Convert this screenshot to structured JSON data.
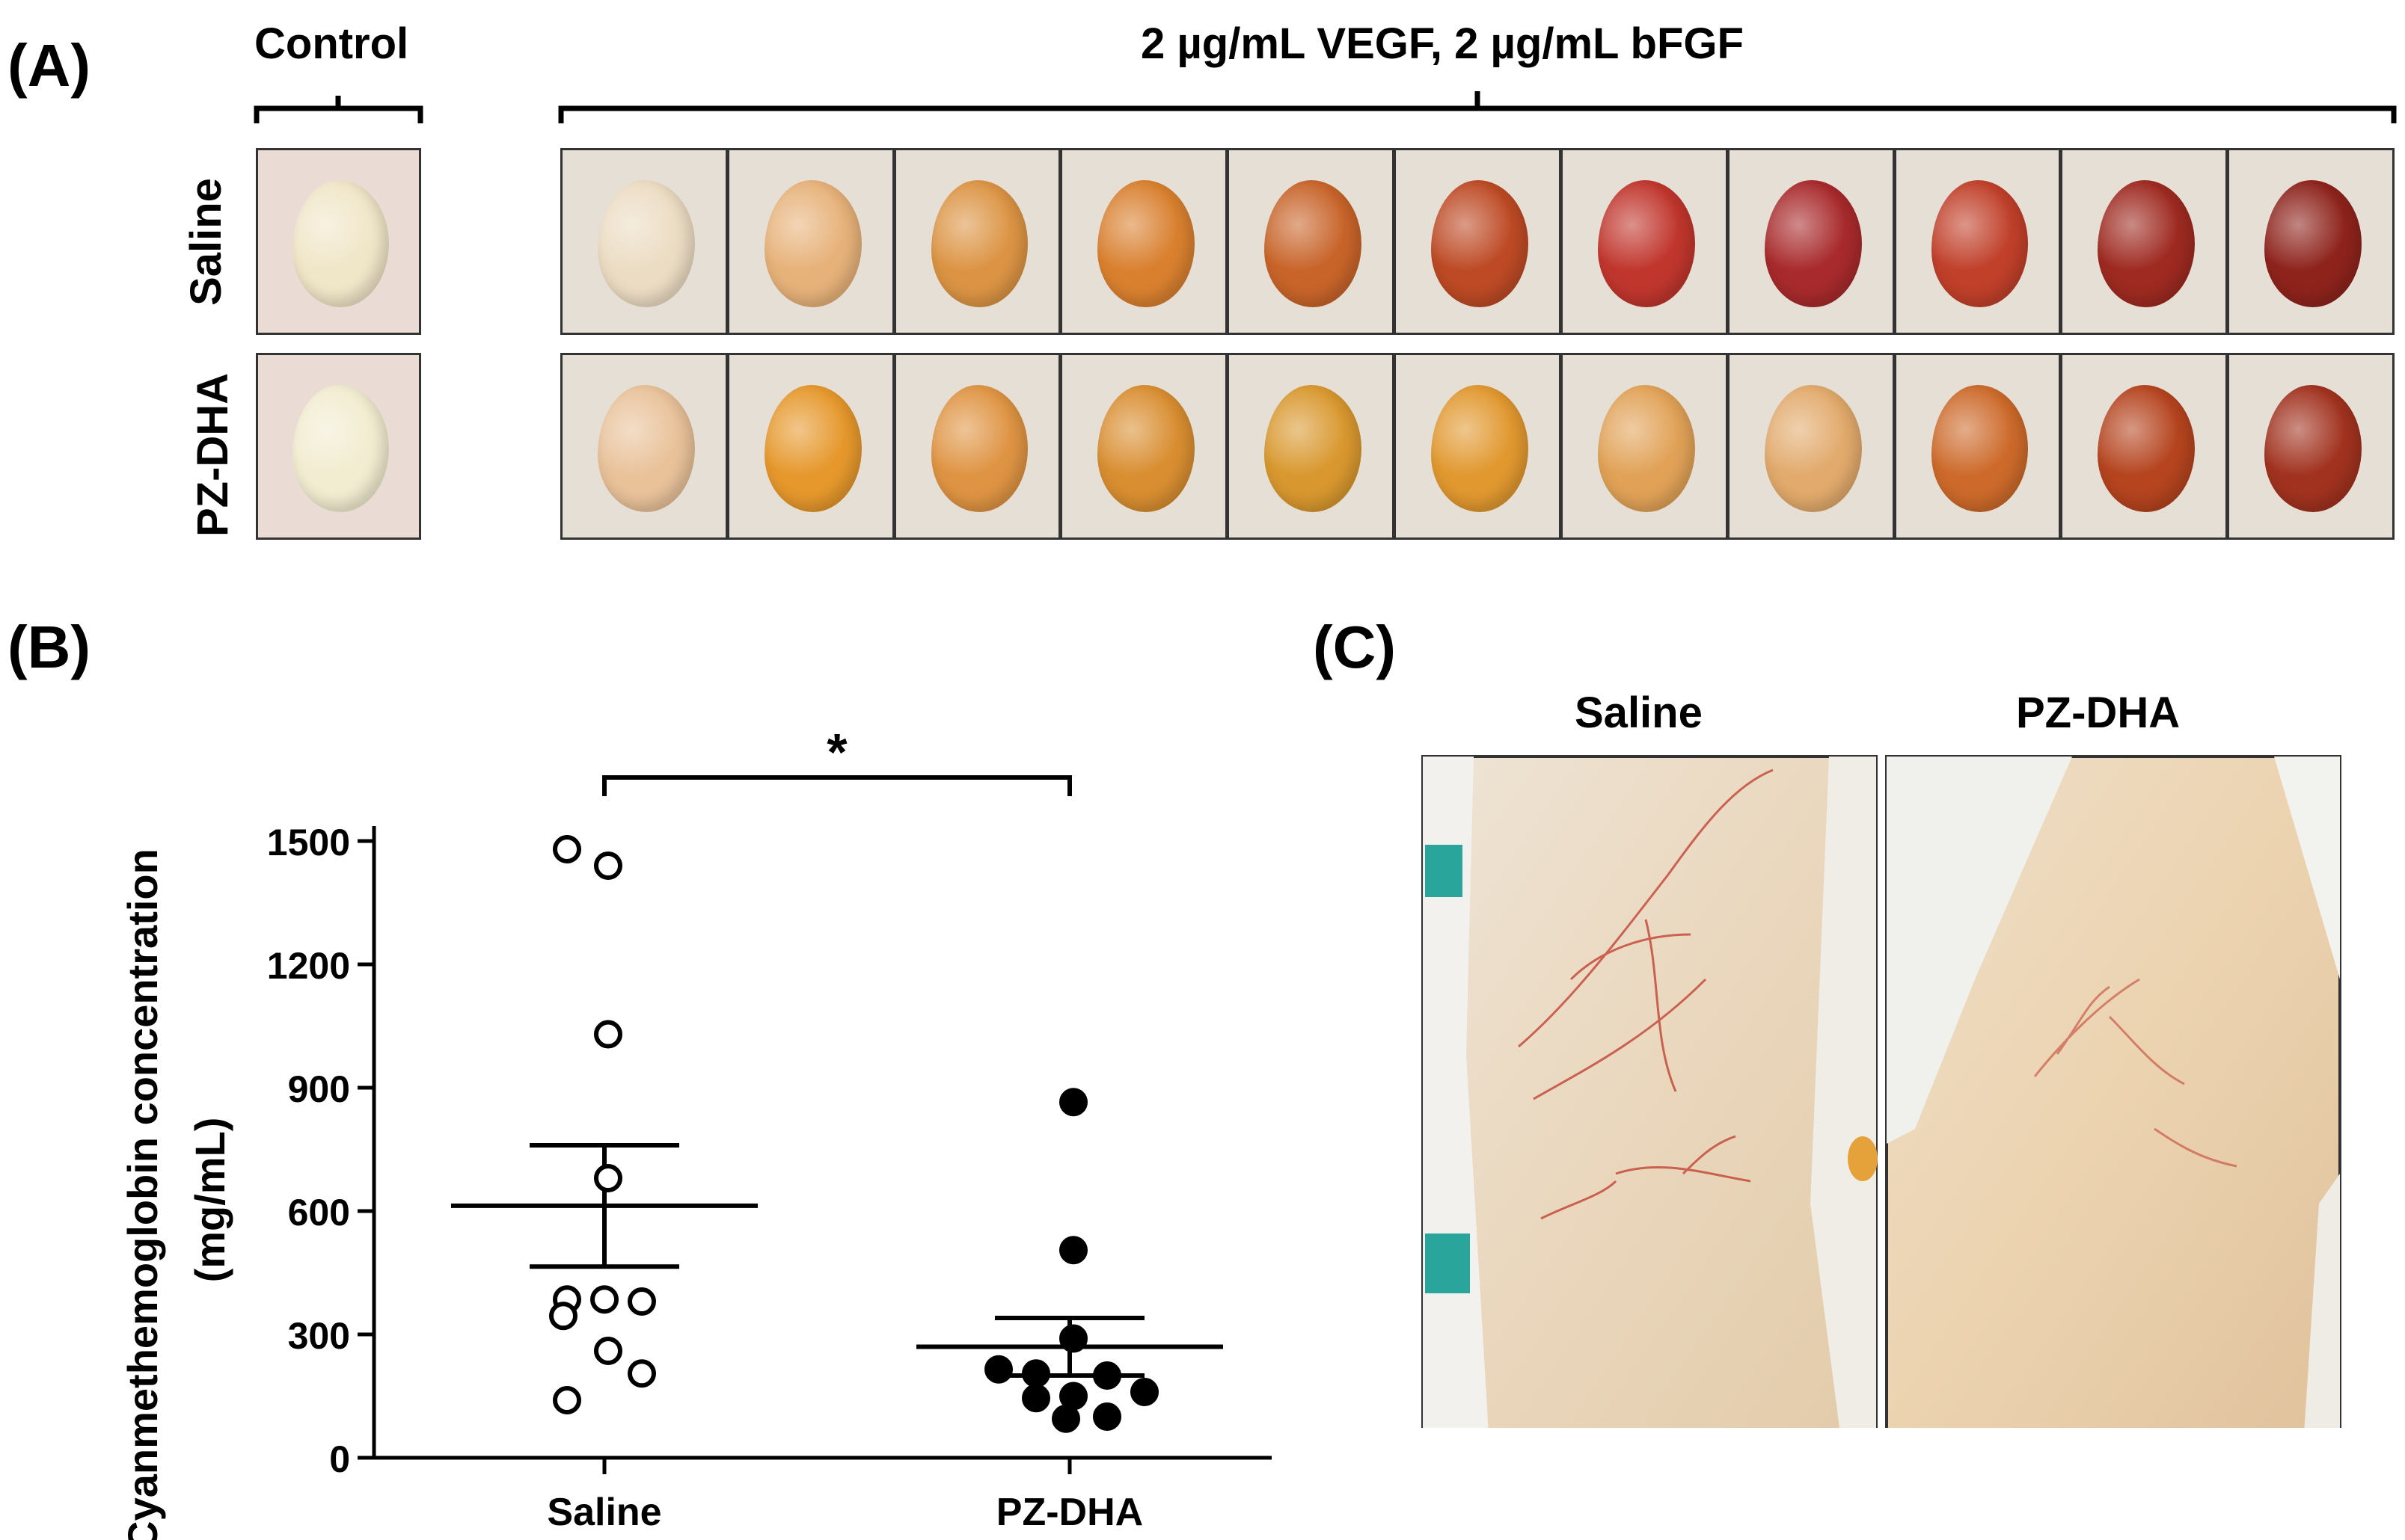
{
  "panel_labels": {
    "a": "(A)",
    "b": "(B)",
    "c": "(C)"
  },
  "panel_a": {
    "control_label": "Control",
    "treatment_label": "2 µg/mL VEGF, 2 µg/mL bFGF",
    "row_labels": [
      "Saline",
      "PZ-DHA"
    ],
    "saline_plug_colors": [
      "#ecdcc3",
      "#e7b27a",
      "#dc9444",
      "#d9802f",
      "#c8642a",
      "#bd4a25",
      "#c0362d",
      "#a82a2c",
      "#c0402a",
      "#9e2a21",
      "#8e231c"
    ],
    "pzdha_plug_colors": [
      "#e9c29a",
      "#e6982c",
      "#df9443",
      "#d98e31",
      "#d9982f",
      "#e1982f",
      "#e1a257",
      "#e2aa6c",
      "#cd6a2b",
      "#b5441f",
      "#a1321f"
    ],
    "control_plug_colors": [
      "#f0e6c8",
      "#f2ecd0"
    ]
  },
  "chart_data": {
    "type": "scatter",
    "title": "",
    "xlabel": "",
    "ylabel": "Cyanmethemoglobin concentration (mg/mL)",
    "ylabel_lines": [
      "Cyanmethemoglobin concentration",
      "(mg/mL)"
    ],
    "categories": [
      "Saline",
      "PZ-DHA"
    ],
    "ylim": [
      0,
      1500
    ],
    "yticks": [
      0,
      300,
      600,
      900,
      1200,
      1500
    ],
    "series": [
      {
        "name": "Saline",
        "marker": "open-circle",
        "values": [
          1480,
          1440,
          1030,
          680,
          385,
          385,
          380,
          345,
          260,
          205,
          140
        ],
        "mean": 613,
        "sem_low": 465,
        "sem_high": 760
      },
      {
        "name": "PZ-DHA",
        "marker": "filled-circle",
        "values": [
          865,
          505,
          290,
          215,
          205,
          200,
          160,
          150,
          145,
          100,
          95
        ],
        "mean": 270,
        "sem_low": 200,
        "sem_high": 340
      }
    ],
    "significance": "*"
  },
  "panel_c": {
    "labels": [
      "Saline",
      "PZ-DHA"
    ]
  }
}
